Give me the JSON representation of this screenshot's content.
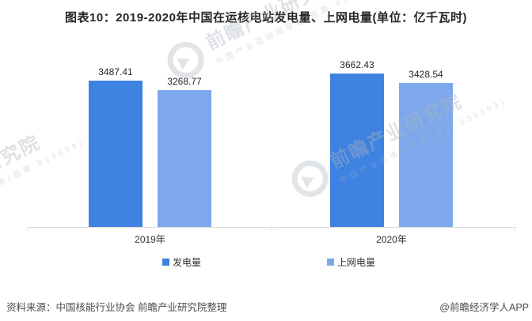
{
  "title": "图表10：2019-2020年中国在运核电站发电量、上网电量(单位：亿千瓦时)",
  "chart_data": {
    "type": "bar",
    "categories": [
      "2019年",
      "2020年"
    ],
    "series": [
      {
        "name": "发电量",
        "color": "#3E82E2",
        "values": [
          3487.41,
          3662.43
        ]
      },
      {
        "name": "上网电量",
        "color": "#7DA9EC",
        "values": [
          3268.77,
          3428.54
        ]
      }
    ],
    "unit": "亿千瓦时",
    "ylim": [
      0,
      3900
    ],
    "value_labels": true,
    "legend_position": "bottom",
    "gridlines": false,
    "axis_color": "#d9d9d9"
  },
  "watermark": {
    "main": "前瞻产业研究院",
    "sub": "中国产业咨询领导者(股票:839599)"
  },
  "footer": {
    "source": "资料来源：中国核能行业协会 前瞻产业研究院整理",
    "brand": "@前瞻经济学人APP"
  }
}
